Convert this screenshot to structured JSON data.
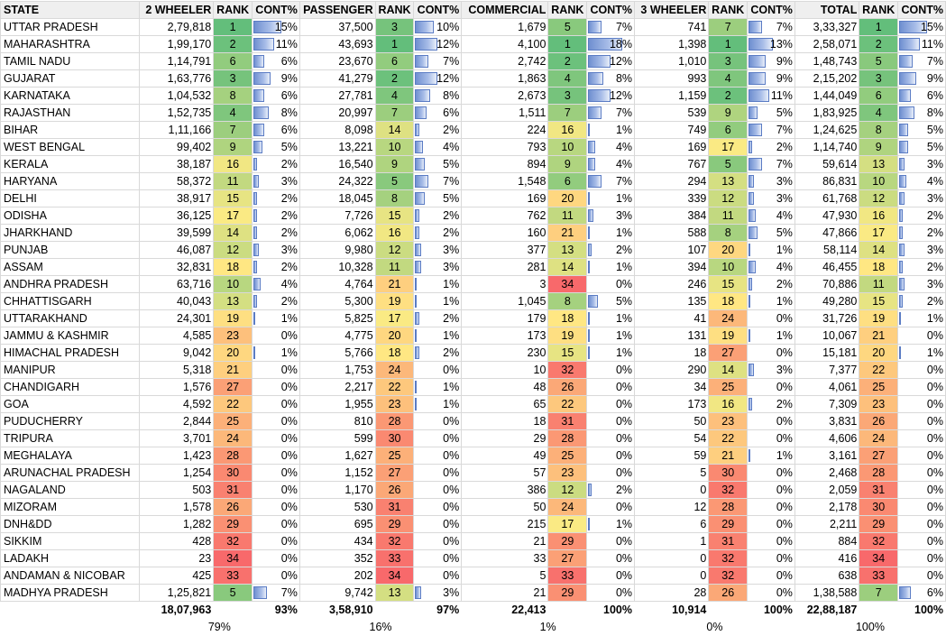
{
  "headers": {
    "state": "STATE",
    "c1": "2 WHEELER",
    "c2": "PASSENGER",
    "c3": "COMMERCIAL",
    "c4": "3 WHEELER",
    "c5": "TOTAL",
    "rank": "RANK",
    "cont": "CONT%"
  },
  "rows": [
    [
      "UTTAR PRADESH",
      "2,79,818",
      1,
      "15%",
      "37,500",
      3,
      "10%",
      "1,679",
      5,
      "7%",
      "741",
      7,
      "7%",
      "3,33,327",
      1,
      "15%"
    ],
    [
      "MAHARASHTRA",
      "1,99,170",
      2,
      "11%",
      "43,693",
      1,
      "12%",
      "4,100",
      1,
      "18%",
      "1,398",
      1,
      "13%",
      "2,58,071",
      2,
      "11%"
    ],
    [
      "TAMIL NADU",
      "1,14,791",
      6,
      "6%",
      "23,670",
      6,
      "7%",
      "2,742",
      2,
      "12%",
      "1,010",
      3,
      "9%",
      "1,48,743",
      5,
      "7%"
    ],
    [
      "GUJARAT",
      "1,63,776",
      3,
      "9%",
      "41,279",
      2,
      "12%",
      "1,863",
      4,
      "8%",
      "993",
      4,
      "9%",
      "2,15,202",
      3,
      "9%"
    ],
    [
      "KARNATAKA",
      "1,04,532",
      8,
      "6%",
      "27,781",
      4,
      "8%",
      "2,673",
      3,
      "12%",
      "1,159",
      2,
      "11%",
      "1,44,049",
      6,
      "6%"
    ],
    [
      "RAJASTHAN",
      "1,52,735",
      4,
      "8%",
      "20,997",
      7,
      "6%",
      "1,511",
      7,
      "7%",
      "539",
      9,
      "5%",
      "1,83,925",
      4,
      "8%"
    ],
    [
      "BIHAR",
      "1,11,166",
      7,
      "6%",
      "8,098",
      14,
      "2%",
      "224",
      16,
      "1%",
      "749",
      6,
      "7%",
      "1,24,625",
      8,
      "5%"
    ],
    [
      "WEST BENGAL",
      "99,402",
      9,
      "5%",
      "13,221",
      10,
      "4%",
      "793",
      10,
      "4%",
      "169",
      17,
      "2%",
      "1,14,740",
      9,
      "5%"
    ],
    [
      "KERALA",
      "38,187",
      16,
      "2%",
      "16,540",
      9,
      "5%",
      "894",
      9,
      "4%",
      "767",
      5,
      "7%",
      "59,614",
      13,
      "3%"
    ],
    [
      "HARYANA",
      "58,372",
      11,
      "3%",
      "24,322",
      5,
      "7%",
      "1,548",
      6,
      "7%",
      "294",
      13,
      "3%",
      "86,831",
      10,
      "4%"
    ],
    [
      "DELHI",
      "38,917",
      15,
      "2%",
      "18,045",
      8,
      "5%",
      "169",
      20,
      "1%",
      "339",
      12,
      "3%",
      "61,768",
      12,
      "3%"
    ],
    [
      "ODISHA",
      "36,125",
      17,
      "2%",
      "7,726",
      15,
      "2%",
      "762",
      11,
      "3%",
      "384",
      11,
      "4%",
      "47,930",
      16,
      "2%"
    ],
    [
      "JHARKHAND",
      "39,599",
      14,
      "2%",
      "6,062",
      16,
      "2%",
      "160",
      21,
      "1%",
      "588",
      8,
      "5%",
      "47,866",
      17,
      "2%"
    ],
    [
      "PUNJAB",
      "46,087",
      12,
      "3%",
      "9,980",
      12,
      "3%",
      "377",
      13,
      "2%",
      "107",
      20,
      "1%",
      "58,114",
      14,
      "3%"
    ],
    [
      "ASSAM",
      "32,831",
      18,
      "2%",
      "10,328",
      11,
      "3%",
      "281",
      14,
      "1%",
      "394",
      10,
      "4%",
      "46,455",
      18,
      "2%"
    ],
    [
      "ANDHRA PRADESH",
      "63,716",
      10,
      "4%",
      "4,764",
      21,
      "1%",
      "3",
      34,
      "0%",
      "246",
      15,
      "2%",
      "70,886",
      11,
      "3%"
    ],
    [
      "CHHATTISGARH",
      "40,043",
      13,
      "2%",
      "5,300",
      19,
      "1%",
      "1,045",
      8,
      "5%",
      "135",
      18,
      "1%",
      "49,280",
      15,
      "2%"
    ],
    [
      "UTTARAKHAND",
      "24,301",
      19,
      "1%",
      "5,825",
      17,
      "2%",
      "179",
      18,
      "1%",
      "41",
      24,
      "0%",
      "31,726",
      19,
      "1%"
    ],
    [
      "JAMMU & KASHMIR",
      "4,585",
      23,
      "0%",
      "4,775",
      20,
      "1%",
      "173",
      19,
      "1%",
      "131",
      19,
      "1%",
      "10,067",
      21,
      "0%"
    ],
    [
      "HIMACHAL PRADESH",
      "9,042",
      20,
      "1%",
      "5,766",
      18,
      "2%",
      "230",
      15,
      "1%",
      "18",
      27,
      "0%",
      "15,181",
      20,
      "1%"
    ],
    [
      "MANIPUR",
      "5,318",
      21,
      "0%",
      "1,753",
      24,
      "0%",
      "10",
      32,
      "0%",
      "290",
      14,
      "3%",
      "7,377",
      22,
      "0%"
    ],
    [
      "CHANDIGARH",
      "1,576",
      27,
      "0%",
      "2,217",
      22,
      "1%",
      "48",
      26,
      "0%",
      "34",
      25,
      "0%",
      "4,061",
      25,
      "0%"
    ],
    [
      "GOA",
      "4,592",
      22,
      "0%",
      "1,955",
      23,
      "1%",
      "65",
      22,
      "0%",
      "173",
      16,
      "2%",
      "7,309",
      23,
      "0%"
    ],
    [
      "PUDUCHERRY",
      "2,844",
      25,
      "0%",
      "810",
      28,
      "0%",
      "18",
      31,
      "0%",
      "50",
      23,
      "0%",
      "3,831",
      26,
      "0%"
    ],
    [
      "TRIPURA",
      "3,701",
      24,
      "0%",
      "599",
      30,
      "0%",
      "29",
      28,
      "0%",
      "54",
      22,
      "0%",
      "4,606",
      24,
      "0%"
    ],
    [
      "MEGHALAYA",
      "1,423",
      28,
      "0%",
      "1,627",
      25,
      "0%",
      "49",
      25,
      "0%",
      "59",
      21,
      "1%",
      "3,161",
      27,
      "0%"
    ],
    [
      "ARUNACHAL PRADESH",
      "1,254",
      30,
      "0%",
      "1,152",
      27,
      "0%",
      "57",
      23,
      "0%",
      "5",
      30,
      "0%",
      "2,468",
      28,
      "0%"
    ],
    [
      "NAGALAND",
      "503",
      31,
      "0%",
      "1,170",
      26,
      "0%",
      "386",
      12,
      "2%",
      "0",
      32,
      "0%",
      "2,059",
      31,
      "0%"
    ],
    [
      "MIZORAM",
      "1,578",
      26,
      "0%",
      "530",
      31,
      "0%",
      "50",
      24,
      "0%",
      "12",
      28,
      "0%",
      "2,178",
      30,
      "0%"
    ],
    [
      "DNH&DD",
      "1,282",
      29,
      "0%",
      "695",
      29,
      "0%",
      "215",
      17,
      "1%",
      "6",
      29,
      "0%",
      "2,211",
      29,
      "0%"
    ],
    [
      "SIKKIM",
      "428",
      32,
      "0%",
      "434",
      32,
      "0%",
      "21",
      29,
      "0%",
      "1",
      31,
      "0%",
      "884",
      32,
      "0%"
    ],
    [
      "LADAKH",
      "23",
      34,
      "0%",
      "352",
      33,
      "0%",
      "33",
      27,
      "0%",
      "0",
      32,
      "0%",
      "416",
      34,
      "0%"
    ],
    [
      "ANDAMAN & NICOBAR",
      "425",
      33,
      "0%",
      "202",
      34,
      "0%",
      "5",
      33,
      "0%",
      "0",
      32,
      "0%",
      "638",
      33,
      "0%"
    ],
    [
      "MADHYA PRADESH",
      "1,25,821",
      5,
      "7%",
      "9,742",
      13,
      "3%",
      "21",
      29,
      "0%",
      "28",
      26,
      "0%",
      "1,38,588",
      7,
      "6%"
    ]
  ],
  "totals": [
    "18,07,963",
    "93%",
    "3,58,910",
    "97%",
    "22,413",
    "100%",
    "10,914",
    "100%",
    "22,88,187",
    "100%"
  ],
  "shares": [
    "79%",
    "16%",
    "1%",
    "0%",
    "100%"
  ],
  "colors": {
    "rank_best": "#63be7b",
    "rank_mid": "#ffeb84",
    "rank_worst": "#f8696b",
    "bar": "#6f8fd0"
  }
}
